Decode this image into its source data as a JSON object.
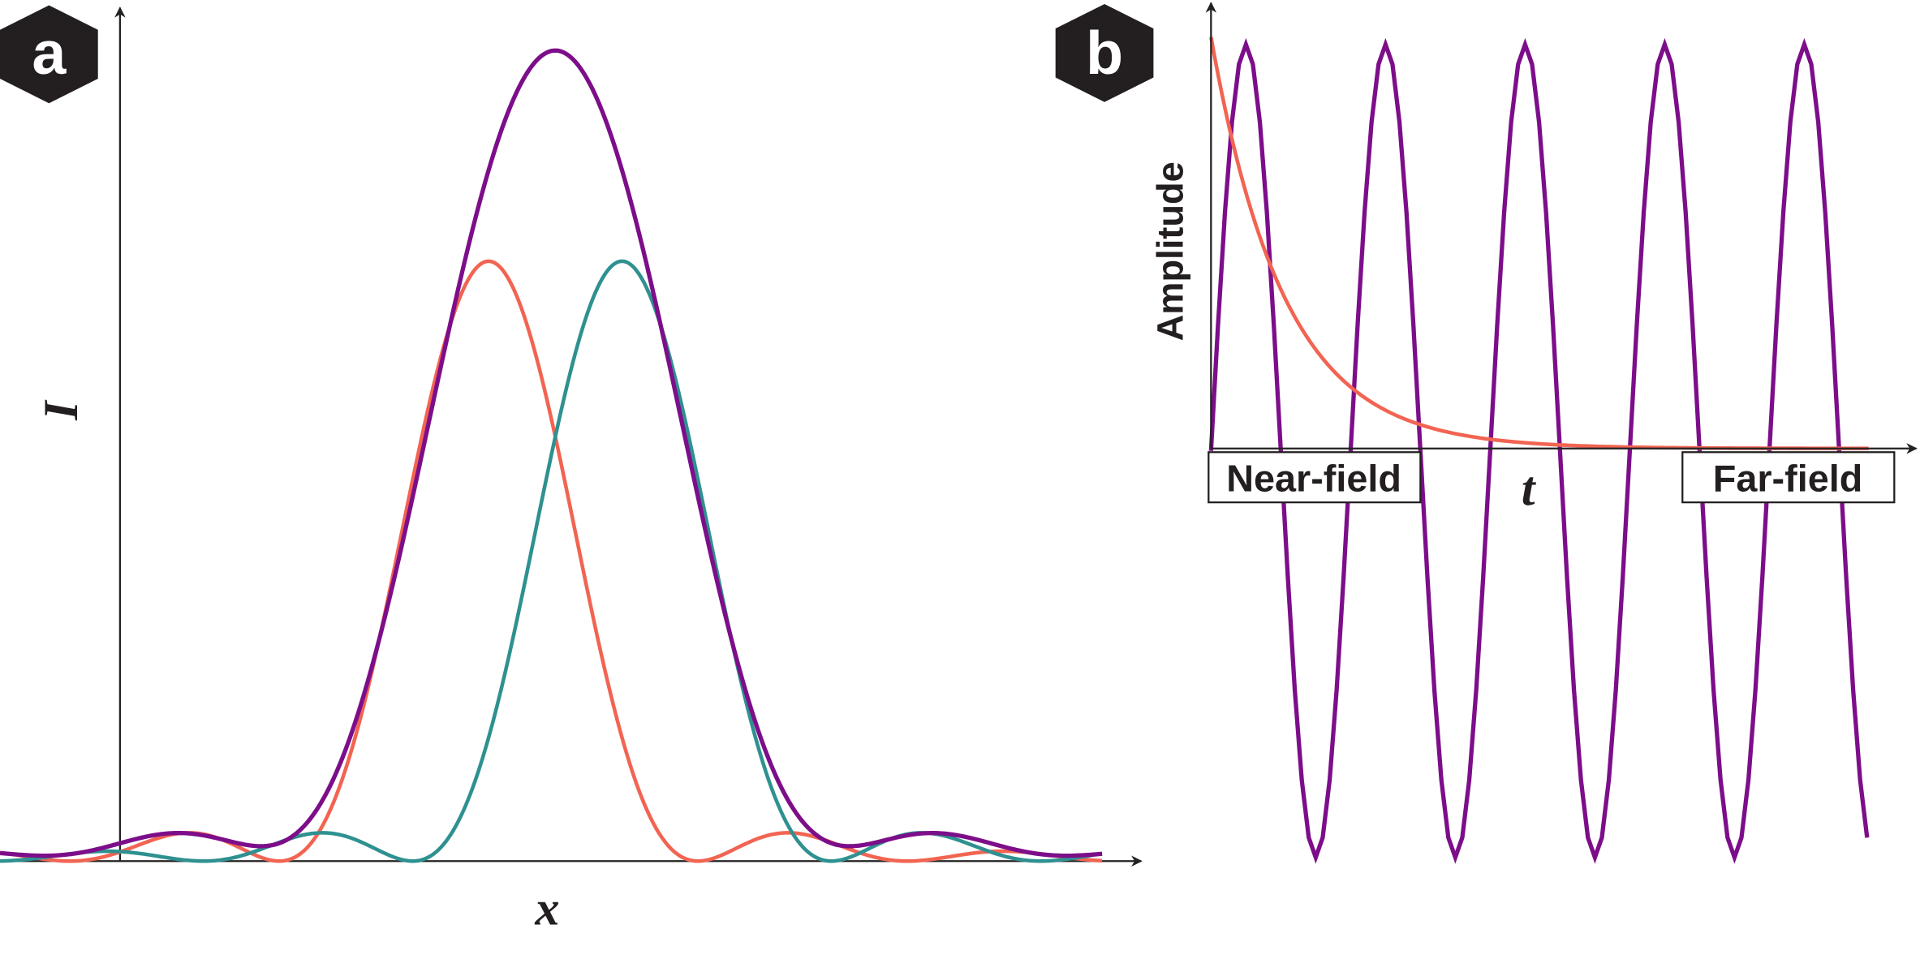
{
  "panel_a": {
    "badge": "a",
    "y_label": "I",
    "x_label": "x"
  },
  "panel_b": {
    "badge": "b",
    "y_label": "Amplitude",
    "x_label": "t",
    "left_box": "Near-field",
    "right_box": "Far-field"
  }
}
